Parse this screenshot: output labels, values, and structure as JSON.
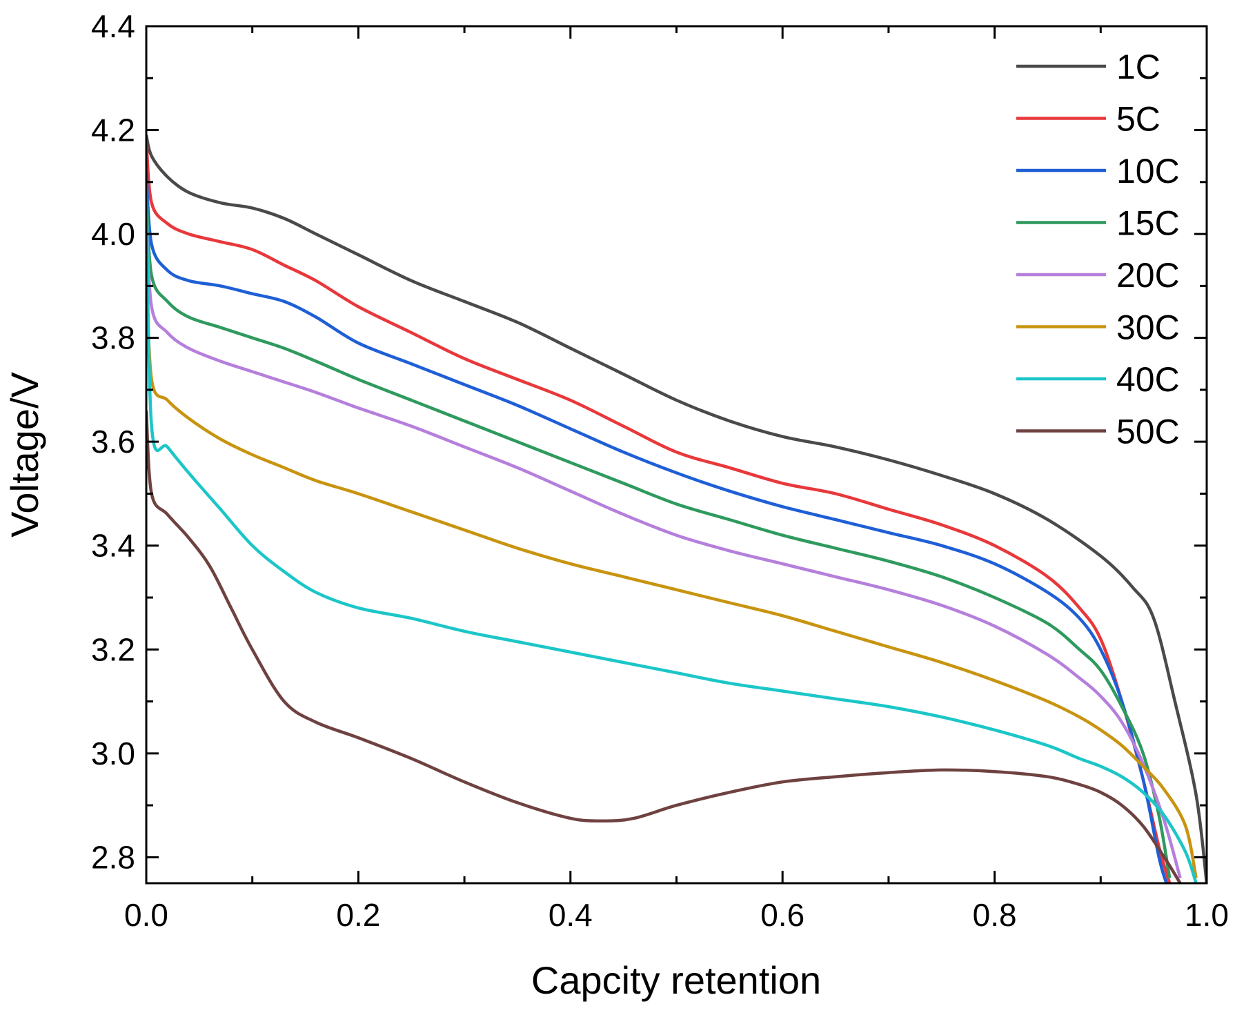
{
  "chart_data": {
    "type": "line",
    "title": "",
    "xlabel": "Capcity retention",
    "ylabel": "Voltage/V",
    "xlim": [
      0.0,
      1.0
    ],
    "ylim": [
      2.75,
      4.4
    ],
    "xticks": [
      "0.0",
      "0.2",
      "0.4",
      "0.6",
      "0.8",
      "1.0"
    ],
    "yticks": [
      "2.8",
      "3.0",
      "3.2",
      "3.4",
      "3.6",
      "3.8",
      "4.0",
      "4.2",
      "4.4"
    ],
    "grid": false,
    "legend_position": "top-right",
    "series": [
      {
        "name": "1C",
        "color": "#4a4a4a",
        "x": [
          0.0,
          0.005,
          0.02,
          0.04,
          0.07,
          0.1,
          0.13,
          0.16,
          0.2,
          0.25,
          0.3,
          0.35,
          0.4,
          0.45,
          0.5,
          0.55,
          0.6,
          0.65,
          0.7,
          0.75,
          0.8,
          0.85,
          0.9,
          0.93,
          0.95,
          0.97,
          0.99,
          1.0
        ],
        "y": [
          4.19,
          4.15,
          4.11,
          4.08,
          4.06,
          4.05,
          4.03,
          4.0,
          3.96,
          3.91,
          3.87,
          3.83,
          3.78,
          3.73,
          3.68,
          3.64,
          3.61,
          3.59,
          3.565,
          3.535,
          3.5,
          3.45,
          3.38,
          3.32,
          3.26,
          3.1,
          2.92,
          2.75
        ]
      },
      {
        "name": "5C",
        "color": "#e8383b",
        "x": [
          0.0,
          0.005,
          0.02,
          0.04,
          0.07,
          0.1,
          0.13,
          0.16,
          0.2,
          0.25,
          0.3,
          0.35,
          0.4,
          0.45,
          0.5,
          0.55,
          0.6,
          0.65,
          0.7,
          0.75,
          0.8,
          0.85,
          0.88,
          0.9,
          0.92,
          0.94,
          0.955,
          0.965
        ],
        "y": [
          4.18,
          4.06,
          4.02,
          4.0,
          3.985,
          3.97,
          3.94,
          3.91,
          3.86,
          3.81,
          3.76,
          3.72,
          3.68,
          3.63,
          3.58,
          3.55,
          3.52,
          3.5,
          3.47,
          3.44,
          3.4,
          3.34,
          3.28,
          3.22,
          3.1,
          2.95,
          2.82,
          2.75
        ]
      },
      {
        "name": "10C",
        "color": "#1f5fd6",
        "x": [
          0.0,
          0.005,
          0.02,
          0.04,
          0.07,
          0.1,
          0.13,
          0.16,
          0.2,
          0.25,
          0.3,
          0.35,
          0.4,
          0.45,
          0.5,
          0.55,
          0.6,
          0.65,
          0.7,
          0.75,
          0.8,
          0.85,
          0.88,
          0.9,
          0.92,
          0.94,
          0.955,
          0.962
        ],
        "y": [
          4.12,
          3.98,
          3.93,
          3.91,
          3.9,
          3.885,
          3.87,
          3.84,
          3.79,
          3.75,
          3.71,
          3.67,
          3.625,
          3.58,
          3.54,
          3.505,
          3.475,
          3.45,
          3.425,
          3.4,
          3.365,
          3.31,
          3.26,
          3.2,
          3.1,
          2.95,
          2.8,
          2.75
        ]
      },
      {
        "name": "15C",
        "color": "#2f9a5e",
        "x": [
          0.0,
          0.005,
          0.02,
          0.04,
          0.07,
          0.1,
          0.13,
          0.16,
          0.2,
          0.25,
          0.3,
          0.35,
          0.4,
          0.45,
          0.5,
          0.55,
          0.6,
          0.65,
          0.7,
          0.75,
          0.8,
          0.85,
          0.88,
          0.9,
          0.92,
          0.94,
          0.955,
          0.965
        ],
        "y": [
          4.08,
          3.92,
          3.87,
          3.84,
          3.82,
          3.8,
          3.78,
          3.755,
          3.72,
          3.68,
          3.64,
          3.6,
          3.56,
          3.52,
          3.48,
          3.45,
          3.42,
          3.395,
          3.37,
          3.34,
          3.3,
          3.25,
          3.2,
          3.16,
          3.09,
          3.0,
          2.88,
          2.76
        ]
      },
      {
        "name": "20C",
        "color": "#b57fdc",
        "x": [
          0.0,
          0.005,
          0.02,
          0.04,
          0.07,
          0.1,
          0.13,
          0.16,
          0.2,
          0.25,
          0.3,
          0.35,
          0.4,
          0.45,
          0.5,
          0.55,
          0.6,
          0.65,
          0.7,
          0.75,
          0.8,
          0.85,
          0.88,
          0.9,
          0.92,
          0.94,
          0.96,
          0.975
        ],
        "y": [
          4.05,
          3.86,
          3.81,
          3.78,
          3.755,
          3.735,
          3.715,
          3.695,
          3.665,
          3.63,
          3.59,
          3.55,
          3.505,
          3.46,
          3.42,
          3.39,
          3.365,
          3.34,
          3.315,
          3.285,
          3.245,
          3.19,
          3.145,
          3.11,
          3.06,
          2.98,
          2.87,
          2.76
        ]
      },
      {
        "name": "30C",
        "color": "#c89410",
        "x": [
          0.0,
          0.005,
          0.02,
          0.04,
          0.07,
          0.1,
          0.13,
          0.16,
          0.2,
          0.25,
          0.3,
          0.35,
          0.4,
          0.45,
          0.5,
          0.55,
          0.6,
          0.65,
          0.7,
          0.75,
          0.8,
          0.85,
          0.88,
          0.9,
          0.92,
          0.94,
          0.96,
          0.98,
          0.99
        ],
        "y": [
          3.95,
          3.72,
          3.68,
          3.645,
          3.605,
          3.575,
          3.55,
          3.525,
          3.5,
          3.465,
          3.43,
          3.395,
          3.365,
          3.34,
          3.315,
          3.29,
          3.265,
          3.235,
          3.205,
          3.175,
          3.14,
          3.1,
          3.07,
          3.045,
          3.015,
          2.975,
          2.93,
          2.86,
          2.76
        ]
      },
      {
        "name": "40C",
        "color": "#1cc6c8",
        "x": [
          0.0,
          0.005,
          0.02,
          0.04,
          0.07,
          0.1,
          0.13,
          0.16,
          0.2,
          0.25,
          0.3,
          0.35,
          0.4,
          0.45,
          0.5,
          0.55,
          0.6,
          0.65,
          0.7,
          0.75,
          0.8,
          0.85,
          0.88,
          0.9,
          0.92,
          0.94,
          0.96,
          0.98,
          0.99
        ],
        "y": [
          4.1,
          3.63,
          3.59,
          3.54,
          3.47,
          3.4,
          3.35,
          3.31,
          3.28,
          3.26,
          3.235,
          3.215,
          3.195,
          3.175,
          3.155,
          3.135,
          3.12,
          3.105,
          3.09,
          3.07,
          3.045,
          3.015,
          2.99,
          2.975,
          2.955,
          2.925,
          2.88,
          2.81,
          2.75
        ]
      },
      {
        "name": "50C",
        "color": "#6e4240",
        "x": [
          0.0,
          0.005,
          0.02,
          0.04,
          0.06,
          0.08,
          0.1,
          0.13,
          0.16,
          0.2,
          0.25,
          0.3,
          0.35,
          0.4,
          0.43,
          0.46,
          0.5,
          0.55,
          0.6,
          0.65,
          0.7,
          0.75,
          0.8,
          0.85,
          0.88,
          0.9,
          0.92,
          0.94,
          0.96,
          0.975
        ],
        "y": [
          3.66,
          3.5,
          3.46,
          3.415,
          3.36,
          3.28,
          3.2,
          3.1,
          3.06,
          3.03,
          2.99,
          2.945,
          2.905,
          2.875,
          2.87,
          2.875,
          2.9,
          2.925,
          2.945,
          2.955,
          2.963,
          2.968,
          2.965,
          2.955,
          2.94,
          2.925,
          2.9,
          2.86,
          2.8,
          2.75
        ]
      }
    ]
  }
}
